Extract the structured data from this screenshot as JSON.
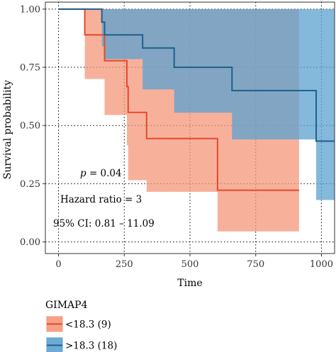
{
  "chart_data": {
    "type": "line",
    "subtype": "kaplan-meier survival curve with 95% confidence bands",
    "xlabel": "Time",
    "ylabel": "Survival probability",
    "xlim": [
      -50,
      1050
    ],
    "ylim": [
      -0.05,
      1.03
    ],
    "x_ticks": [
      0,
      250,
      500,
      750,
      1000
    ],
    "y_ticks": [
      0.0,
      0.25,
      0.5,
      0.75,
      1.0
    ],
    "x_tick_labels": [
      "0",
      "250",
      "500",
      "750",
      "1000"
    ],
    "y_tick_labels": [
      "0.00",
      "0.25",
      "0.50",
      "0.75",
      "1.00"
    ],
    "grid": "dotted",
    "legend_title": "GIMAP4",
    "legend_position": "bottom-left, below plot",
    "annotations": {
      "p_prefix": "p",
      "p_rest": " = 0.04",
      "hazard": "Hazard ratio = 3",
      "ci": "95% CI: 0.81 – 11.09"
    },
    "series": [
      {
        "name": "<18.3 (9)",
        "line_color": "#e8472b",
        "band_color": "#f4977a",
        "steps": [
          [
            0,
            1.0
          ],
          [
            100,
            0.889
          ],
          [
            175,
            0.778
          ],
          [
            260,
            0.667
          ],
          [
            265,
            0.556
          ],
          [
            335,
            0.444
          ],
          [
            605,
            0.222
          ],
          [
            915,
            0.222
          ]
        ],
        "lower": [
          [
            0,
            1.0
          ],
          [
            100,
            0.7
          ],
          [
            175,
            0.545
          ],
          [
            260,
            0.415
          ],
          [
            265,
            0.265
          ],
          [
            335,
            0.215
          ],
          [
            605,
            0.045
          ],
          [
            915,
            0.045
          ]
        ],
        "upper": [
          [
            0,
            1.0
          ],
          [
            915,
            1.0
          ]
        ]
      },
      {
        "name": ">18.3 (18)",
        "line_color": "#1f5f8b",
        "band_color": "#5ba2d0",
        "steps": [
          [
            0,
            1.0
          ],
          [
            165,
            0.944
          ],
          [
            175,
            0.889
          ],
          [
            320,
            0.833
          ],
          [
            440,
            0.75
          ],
          [
            660,
            0.65
          ],
          [
            980,
            0.433
          ],
          [
            1050,
            0.433
          ]
        ],
        "lower": [
          [
            0,
            1.0
          ],
          [
            165,
            0.84
          ],
          [
            175,
            0.785
          ],
          [
            320,
            0.655
          ],
          [
            440,
            0.555
          ],
          [
            660,
            0.44
          ],
          [
            980,
            0.18
          ],
          [
            1050,
            0.18
          ]
        ],
        "upper": [
          [
            0,
            1.0
          ],
          [
            1050,
            1.0
          ]
        ]
      }
    ]
  }
}
